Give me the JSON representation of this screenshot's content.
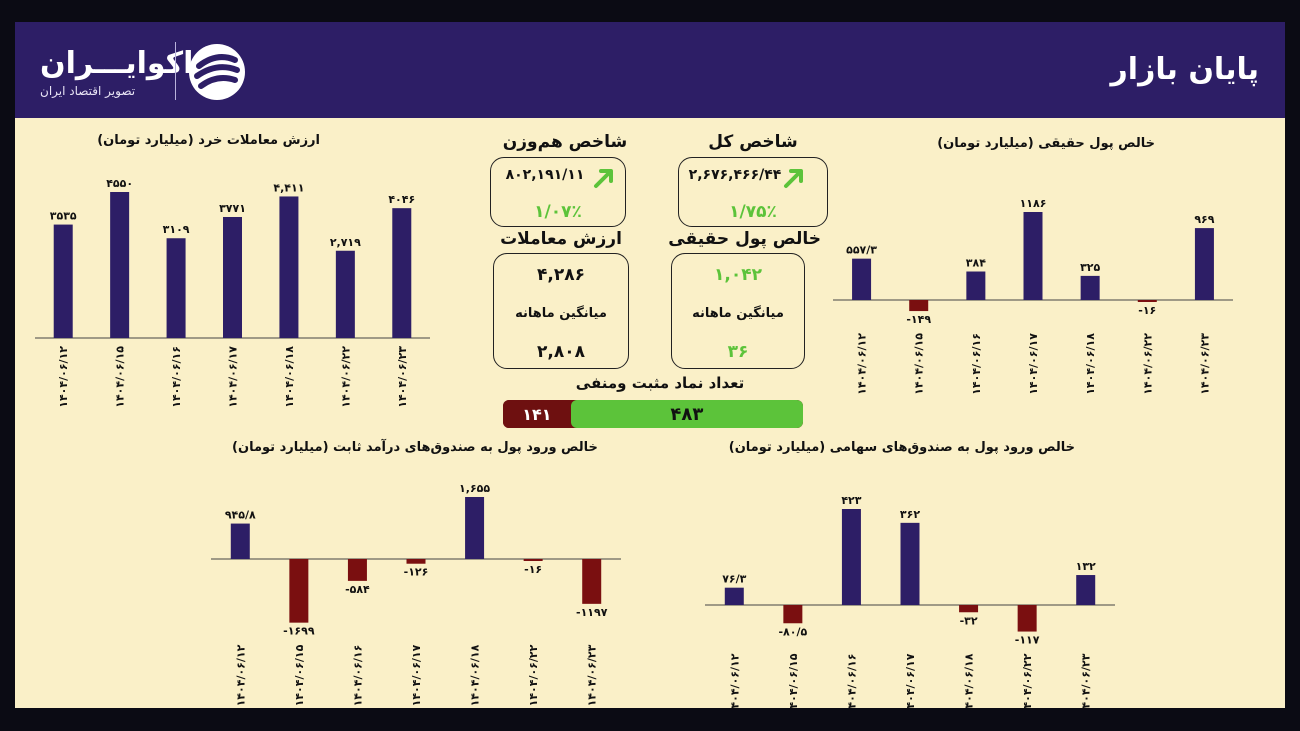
{
  "header": {
    "logo_text": "اکوایـــران",
    "logo_subtitle": "تصویر اقتصاد ایران",
    "page_title": "پایان بازار"
  },
  "colors": {
    "header_bg": "#2d1e66",
    "page_bg": "#faf0c8",
    "positive_bar": "#2d1e66",
    "negative_bar": "#7a0f10",
    "green": "#5cc33a"
  },
  "summary": {
    "total_index": {
      "title": "شاخص کل",
      "value": "۲,۶۷۶,۴۶۶/۴۴",
      "change": "۱/۷۵٪",
      "arrow": "up-arrow-icon"
    },
    "equal_weight_index": {
      "title": "شاخص هم‌وزن",
      "value": "۸۰۲,۱۹۱/۱۱",
      "change": "۱/۰۷٪",
      "arrow": "up-arrow-icon"
    },
    "real_money": {
      "title": "خالص پول حقیقی",
      "value": "۱,۰۴۲",
      "avg_label": "میانگین ماهانه",
      "avg_value": "۳۶"
    },
    "trade_value": {
      "title": "ارزش معاملات",
      "value": "۴,۲۸۶",
      "avg_label": "میانگین ماهانه",
      "avg_value": "۲,۸۰۸"
    },
    "pos_neg": {
      "title": "تعداد نماد مثبت ومنفی",
      "positive": 483,
      "negative": 141,
      "positive_label": "۴۸۳",
      "negative_label": "۱۴۱"
    }
  },
  "chart_data": [
    {
      "id": "retail",
      "type": "bar",
      "title": "ارزش معاملات خرد (میلیارد تومان)",
      "categories": [
        "۱۴۰۴/۰۶/۱۲",
        "۱۴۰۴/۰۶/۱۵",
        "۱۴۰۴/۰۶/۱۶",
        "۱۴۰۴/۰۶/۱۷",
        "۱۴۰۴/۰۶/۱۸",
        "۱۴۰۴/۰۶/۲۲",
        "۱۴۰۴/۰۶/۲۳"
      ],
      "values": [
        3535,
        4550,
        3109,
        3771,
        4411,
        2719,
        4046
      ],
      "labels": [
        "۳۵۳۵",
        "۴۵۵۰",
        "۳۱۰۹",
        "۳۷۷۱",
        "۴,۴۱۱",
        "۲,۷۱۹",
        "۴۰۴۶"
      ],
      "ylim": [
        0,
        4550
      ]
    },
    {
      "id": "real-money",
      "type": "bar",
      "title": "خالص پول حقیقی (میلیارد تومان)",
      "categories": [
        "۱۴۰۴/۰۶/۱۲",
        "۱۴۰۴/۰۶/۱۵",
        "۱۴۰۴/۰۶/۱۶",
        "۱۴۰۴/۰۶/۱۷",
        "۱۴۰۴/۰۶/۱۸",
        "۱۴۰۴/۰۶/۲۲",
        "۱۴۰۴/۰۶/۲۳"
      ],
      "values": [
        557.3,
        -149,
        384,
        1186,
        325,
        -16,
        969
      ],
      "labels": [
        "۵۵۷/۳",
        "-۱۴۹",
        "۳۸۴",
        "۱۱۸۶",
        "۳۲۵",
        "-۱۶",
        "۹۶۹"
      ],
      "ylim": [
        -149,
        1186
      ]
    },
    {
      "id": "fixed-income",
      "type": "bar",
      "title": "خالص ورود پول به صندوق‌های درآمد ثابت (میلیارد تومان)",
      "categories": [
        "۱۴۰۴/۰۶/۱۲",
        "۱۴۰۴/۰۶/۱۵",
        "۱۴۰۴/۰۶/۱۶",
        "۱۴۰۴/۰۶/۱۷",
        "۱۴۰۴/۰۶/۱۸",
        "۱۴۰۴/۰۶/۲۲",
        "۱۴۰۴/۰۶/۲۳"
      ],
      "values": [
        945.8,
        -1699,
        -584,
        -126,
        1655,
        -16,
        -1197
      ],
      "labels": [
        "۹۴۵/۸",
        "-۱۶۹۹",
        "-۵۸۴",
        "-۱۲۶",
        "۱,۶۵۵",
        "-۱۶",
        "-۱۱۹۷"
      ],
      "ylim": [
        -1699,
        1655
      ]
    },
    {
      "id": "equity-funds",
      "type": "bar",
      "title": "خالص ورود پول به صندوق‌های سهامی (میلیارد تومان)",
      "categories": [
        "۱۴۰۴/۰۶/۱۲",
        "۱۴۰۴/۰۶/۱۵",
        "۱۴۰۴/۰۶/۱۶",
        "۱۴۰۴/۰۶/۱۷",
        "۱۴۰۴/۰۶/۱۸",
        "۱۴۰۴/۰۶/۲۲",
        "۱۴۰۴/۰۶/۲۳"
      ],
      "values": [
        76.3,
        -80.5,
        423,
        362,
        -32,
        -117,
        132
      ],
      "labels": [
        "۷۶/۳",
        "-۸۰/۵",
        "۴۲۳",
        "۳۶۲",
        "-۳۲",
        "-۱۱۷",
        "۱۳۲"
      ],
      "ylim": [
        -117,
        423
      ]
    }
  ]
}
